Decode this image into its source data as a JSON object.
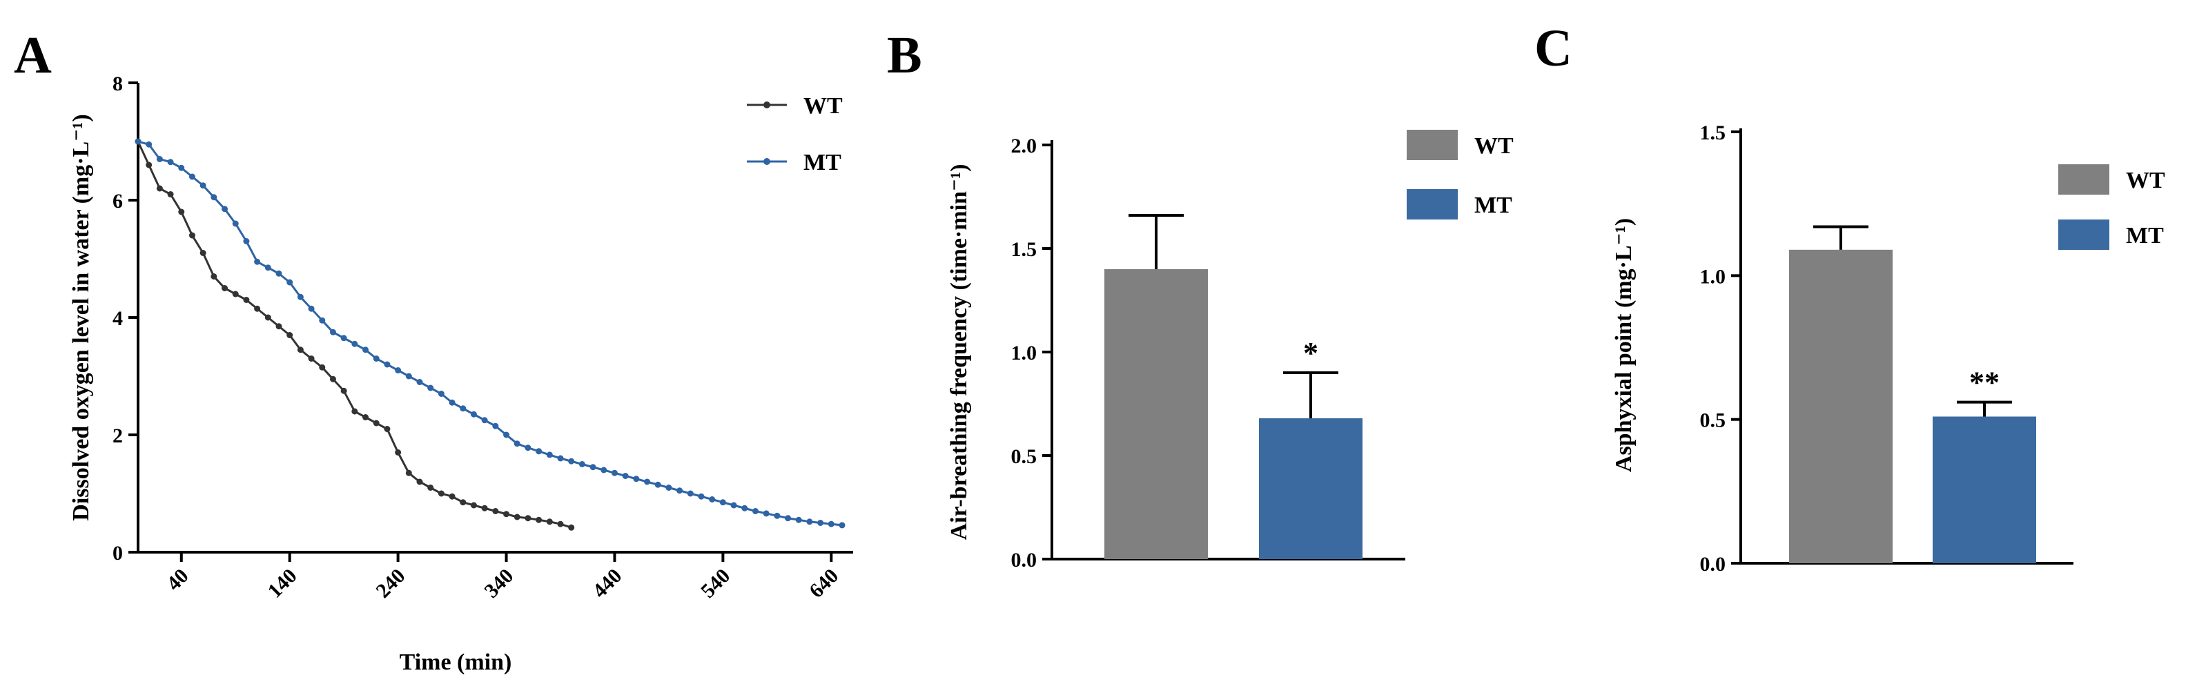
{
  "colors": {
    "wt_line": "#333333",
    "mt_line": "#2e64a5",
    "wt_bar": "#808080",
    "mt_bar": "#3a6aa0",
    "err": "#000000"
  },
  "chart_data": [
    {
      "panel": "A",
      "type": "line",
      "title": "",
      "xlabel": "Time (min)",
      "ylabel": "Dissolved oxygen level in water (mg·L⁻¹)",
      "xlim": [
        0,
        650
      ],
      "ylim": [
        0,
        8
      ],
      "xticks": [
        "40",
        "140",
        "240",
        "340",
        "440",
        "540",
        "640"
      ],
      "yticks": [
        "0",
        "2",
        "4",
        "6",
        "8"
      ],
      "legend_position": "top-right",
      "series": [
        {
          "name": "WT",
          "color": "#333333",
          "x": [
            0,
            10,
            20,
            30,
            40,
            50,
            60,
            70,
            80,
            90,
            100,
            110,
            120,
            130,
            140,
            150,
            160,
            170,
            180,
            190,
            200,
            210,
            220,
            230,
            240,
            250,
            260,
            270,
            280,
            290,
            300,
            310,
            320,
            330,
            340,
            350,
            360,
            370,
            380,
            390,
            400
          ],
          "y": [
            7.0,
            6.6,
            6.2,
            6.1,
            5.8,
            5.4,
            5.1,
            4.7,
            4.5,
            4.4,
            4.3,
            4.15,
            4.0,
            3.85,
            3.7,
            3.45,
            3.3,
            3.15,
            2.95,
            2.75,
            2.4,
            2.3,
            2.2,
            2.1,
            1.7,
            1.35,
            1.2,
            1.1,
            1.0,
            0.95,
            0.85,
            0.8,
            0.75,
            0.7,
            0.65,
            0.6,
            0.58,
            0.55,
            0.52,
            0.48,
            0.42
          ]
        },
        {
          "name": "MT",
          "color": "#2e64a5",
          "x": [
            0,
            10,
            20,
            30,
            40,
            50,
            60,
            70,
            80,
            90,
            100,
            110,
            120,
            130,
            140,
            150,
            160,
            170,
            180,
            190,
            200,
            210,
            220,
            230,
            240,
            250,
            260,
            270,
            280,
            290,
            300,
            310,
            320,
            330,
            340,
            350,
            360,
            370,
            380,
            390,
            400,
            410,
            420,
            430,
            440,
            450,
            460,
            470,
            480,
            490,
            500,
            510,
            520,
            530,
            540,
            550,
            560,
            570,
            580,
            590,
            600,
            610,
            620,
            630,
            640,
            650
          ],
          "y": [
            7.0,
            6.95,
            6.7,
            6.65,
            6.55,
            6.4,
            6.25,
            6.05,
            5.85,
            5.6,
            5.3,
            4.95,
            4.85,
            4.75,
            4.6,
            4.35,
            4.15,
            3.95,
            3.75,
            3.65,
            3.55,
            3.45,
            3.3,
            3.2,
            3.1,
            3.0,
            2.9,
            2.8,
            2.7,
            2.55,
            2.45,
            2.35,
            2.25,
            2.15,
            2.0,
            1.85,
            1.78,
            1.72,
            1.66,
            1.6,
            1.55,
            1.5,
            1.45,
            1.4,
            1.35,
            1.3,
            1.25,
            1.2,
            1.15,
            1.1,
            1.05,
            1.0,
            0.95,
            0.9,
            0.85,
            0.8,
            0.75,
            0.7,
            0.66,
            0.62,
            0.58,
            0.55,
            0.52,
            0.5,
            0.48,
            0.46
          ]
        }
      ]
    },
    {
      "panel": "B",
      "type": "bar",
      "title": "",
      "xlabel": "",
      "ylabel": "Air-breathing frequency (time·min⁻¹)",
      "ylim": [
        0,
        2.0
      ],
      "yticks": [
        "0.0",
        "0.5",
        "1.0",
        "1.5",
        "2.0"
      ],
      "categories": [
        "WT",
        "MT"
      ],
      "values": [
        1.4,
        0.68
      ],
      "errors": [
        0.26,
        0.22
      ],
      "annotations": [
        "",
        "*"
      ],
      "legend": [
        "WT",
        "MT"
      ],
      "legend_position": "top-right"
    },
    {
      "panel": "C",
      "type": "bar",
      "title": "",
      "xlabel": "",
      "ylabel": "Asphyxial point (mg·L⁻¹)",
      "ylim": [
        0,
        1.5
      ],
      "yticks": [
        "0.0",
        "0.5",
        "1.0",
        "1.5"
      ],
      "categories": [
        "WT",
        "MT"
      ],
      "values": [
        1.09,
        0.51
      ],
      "errors": [
        0.08,
        0.05
      ],
      "annotations": [
        "",
        "**"
      ],
      "legend": [
        "WT",
        "MT"
      ],
      "legend_position": "top-right"
    }
  ]
}
